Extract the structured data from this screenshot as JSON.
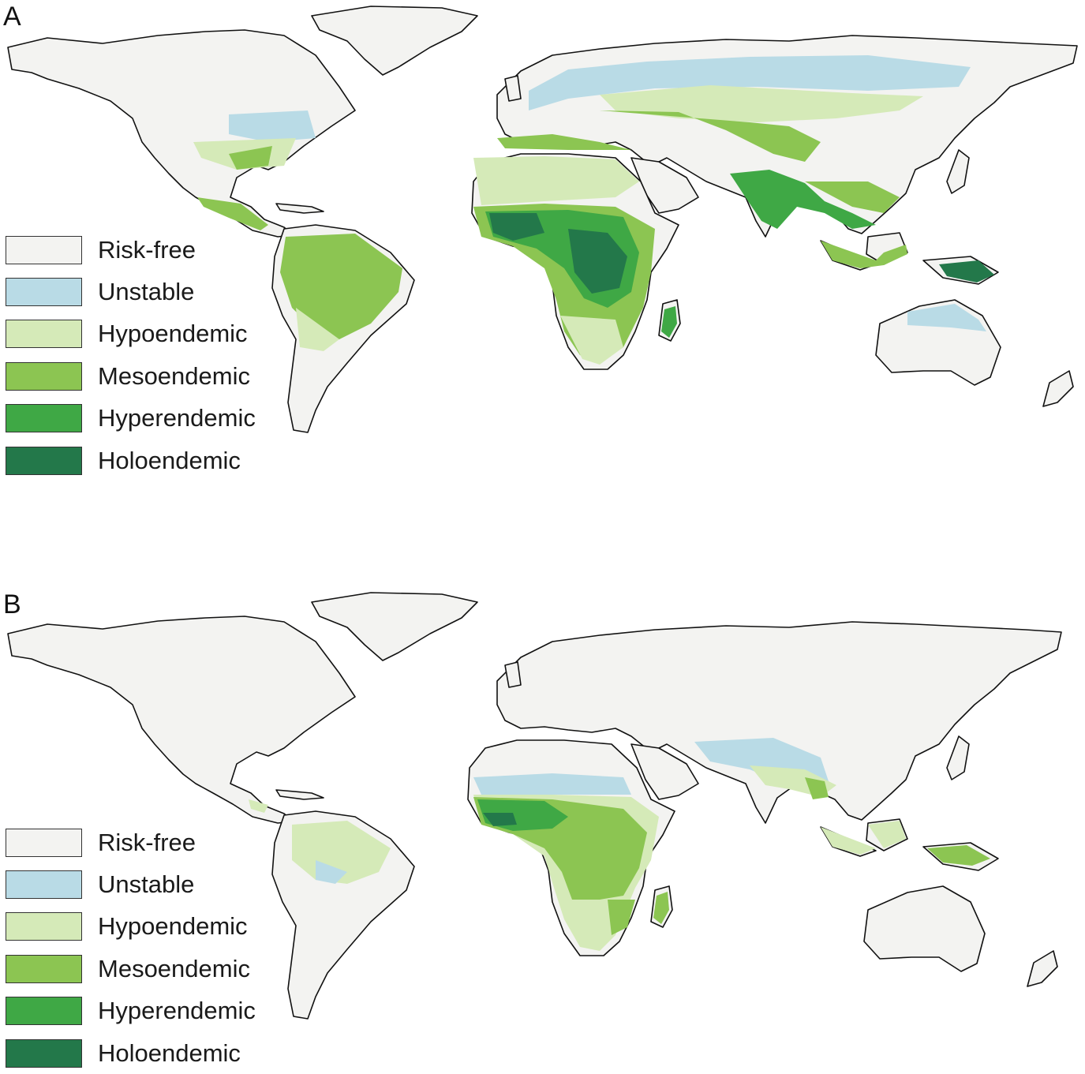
{
  "panels": [
    {
      "letter": "A",
      "legend": [
        {
          "label": "Risk-free",
          "color": "#f3f3f1"
        },
        {
          "label": "Unstable",
          "color": "#b9dbe6"
        },
        {
          "label": "Hypoendemic",
          "color": "#d5eab8"
        },
        {
          "label": "Mesoendemic",
          "color": "#8cc552"
        },
        {
          "label": "Hyperendemic",
          "color": "#3fa845"
        },
        {
          "label": "Holoendemic",
          "color": "#23784a"
        }
      ]
    },
    {
      "letter": "B",
      "legend": [
        {
          "label": "Risk-free",
          "color": "#f3f3f1"
        },
        {
          "label": "Unstable",
          "color": "#b9dbe6"
        },
        {
          "label": "Hypoendemic",
          "color": "#d5eab8"
        },
        {
          "label": "Mesoendemic",
          "color": "#8cc552"
        },
        {
          "label": "Hyperendemic",
          "color": "#3fa845"
        },
        {
          "label": "Holoendemic",
          "color": "#23784a"
        }
      ]
    }
  ]
}
